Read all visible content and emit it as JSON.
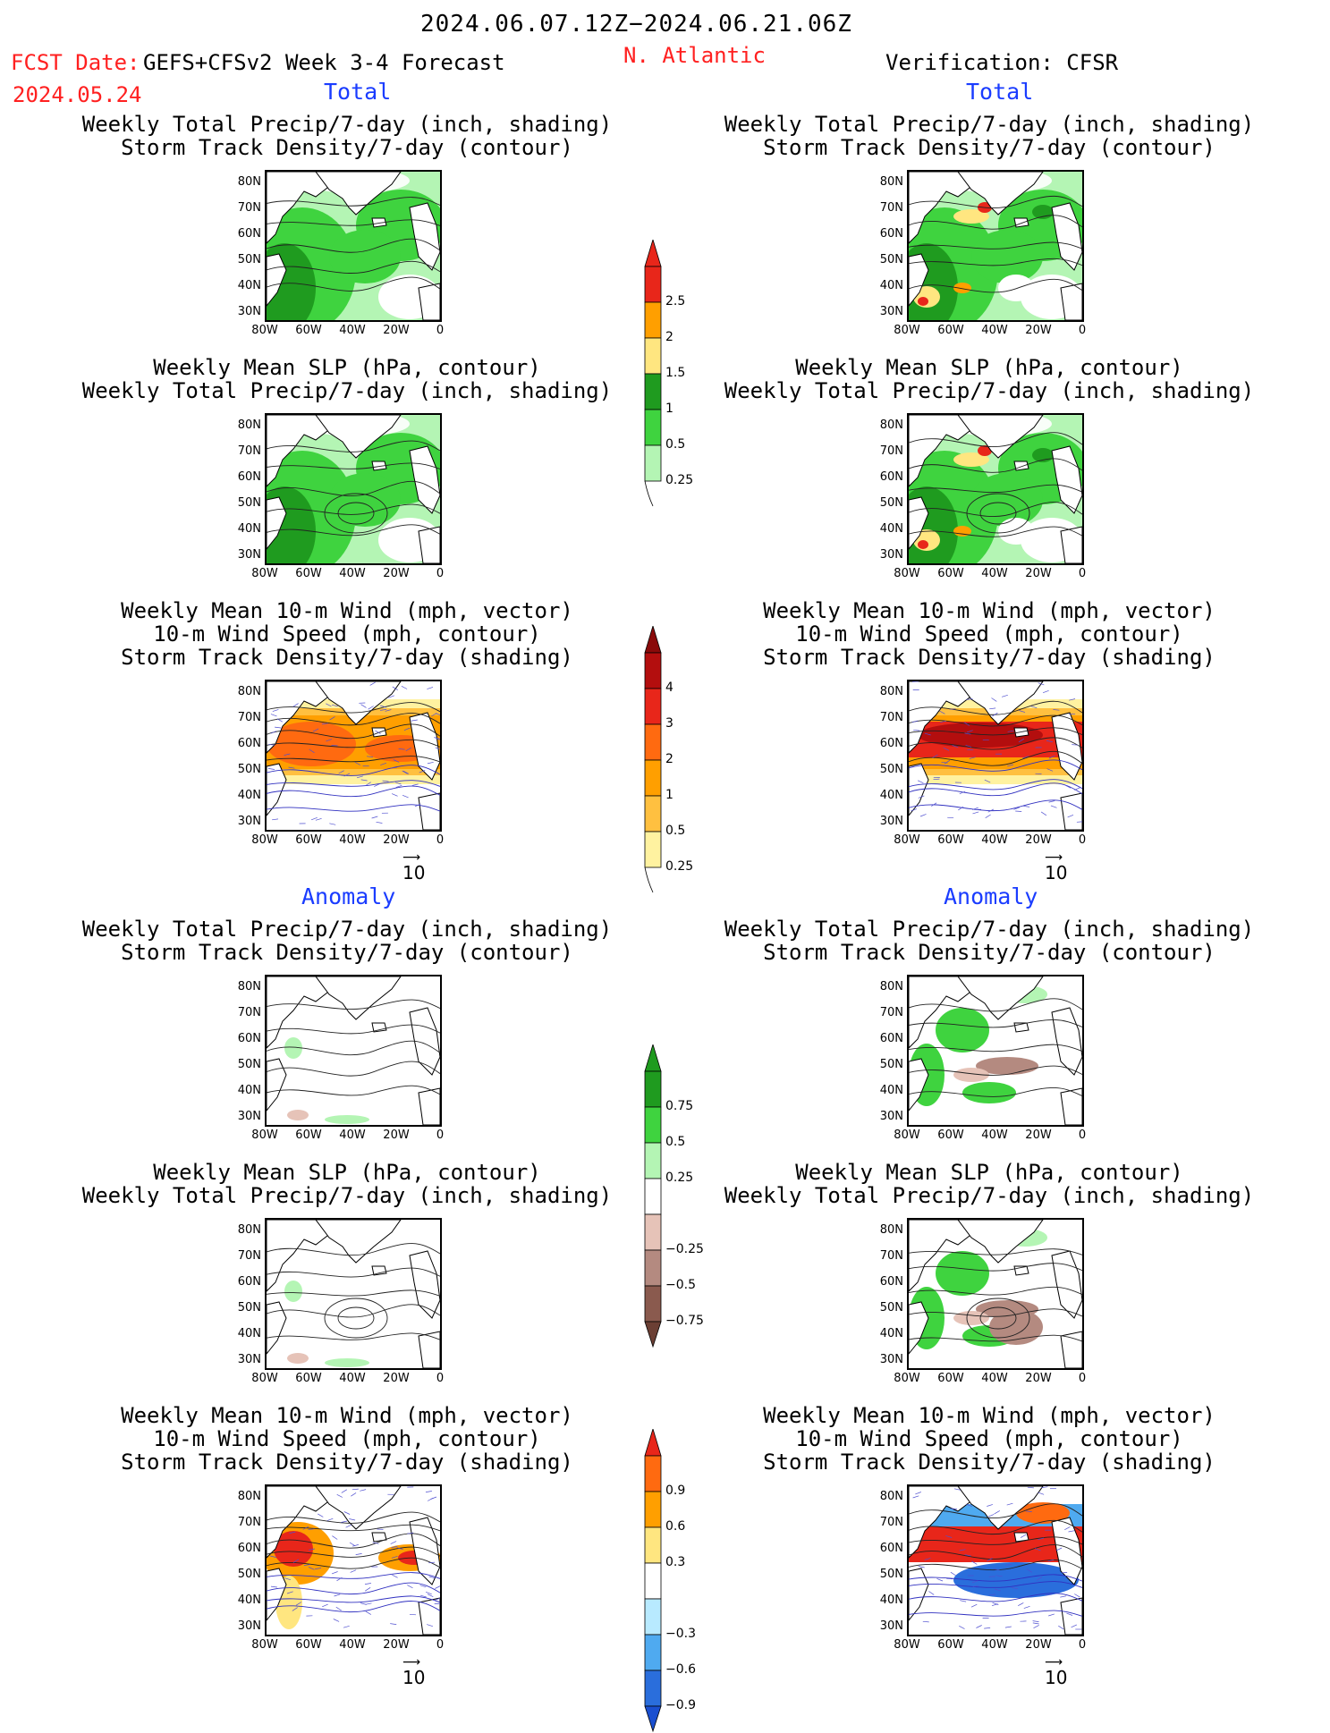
{
  "header": {
    "date_range": "2024.06.07.12Z−2024.06.21.06Z",
    "fcst_date_label": "FCST Date:",
    "forecast_name": "GEFS+CFSv2 Week 3-4 Forecast",
    "fcst_date": "2024.05.24",
    "region": "N. Atlantic",
    "verification": "Verification: CFSR"
  },
  "sections": {
    "total": "Total",
    "anomaly": "Anomaly"
  },
  "titles": {
    "precip_track": [
      "Weekly Total Precip/7-day (inch, shading)",
      "Storm Track Density/7-day (contour)"
    ],
    "slp_precip": [
      "Weekly Mean SLP (hPa, contour)",
      "Weekly Total Precip/7-day (inch, shading)"
    ],
    "wind_track": [
      "Weekly Mean 10-m Wind (mph, vector)",
      "10-m Wind Speed (mph, contour)",
      "Storm Track Density/7-day (shading)"
    ]
  },
  "axes": {
    "lat": [
      "80N",
      "70N",
      "60N",
      "50N",
      "40N",
      "30N"
    ],
    "lon": [
      "80W",
      "60W",
      "40W",
      "20W",
      "0"
    ]
  },
  "vector_ref": "10",
  "colorbars": [
    {
      "name": "total-precip",
      "labels": [
        "2.5",
        "2",
        "1.5",
        "1",
        "0.5",
        "0.25"
      ],
      "colors": [
        "#e8261a",
        "#ff9f00",
        "#ffe680",
        "#1f9b1f",
        "#3fd33f",
        "#b4f5b4"
      ],
      "tip_top": "#e8261a"
    },
    {
      "name": "total-track",
      "labels": [
        "4",
        "3",
        "2",
        "1",
        "0.5",
        "0.25"
      ],
      "colors": [
        "#b30e0e",
        "#e8261a",
        "#ff6a10",
        "#ff9f00",
        "#ffc040",
        "#fff2a0"
      ],
      "tip_top": "#8a0a0a"
    },
    {
      "name": "anom-precip",
      "labels": [
        "0.75",
        "0.5",
        "0.25",
        "−0.25",
        "−0.5",
        "−0.75"
      ],
      "colors": [
        "#1f9b1f",
        "#3fd33f",
        "#b4f5b4",
        "#ffffff",
        "#e6c3b8",
        "#b48a80",
        "#8a5a4e"
      ],
      "tip_top": "#1f9b1f",
      "tip_bottom": "#6b3f34"
    },
    {
      "name": "anom-track",
      "labels": [
        "0.9",
        "0.6",
        "0.3",
        "−0.3",
        "−0.6",
        "−0.9"
      ],
      "colors": [
        "#ff6a10",
        "#ff9f00",
        "#ffe680",
        "#ffffff",
        "#b8eaff",
        "#4faaf0",
        "#2a6edc"
      ],
      "tip_top": "#e8261a",
      "tip_bottom": "#1a4fd0"
    }
  ]
}
